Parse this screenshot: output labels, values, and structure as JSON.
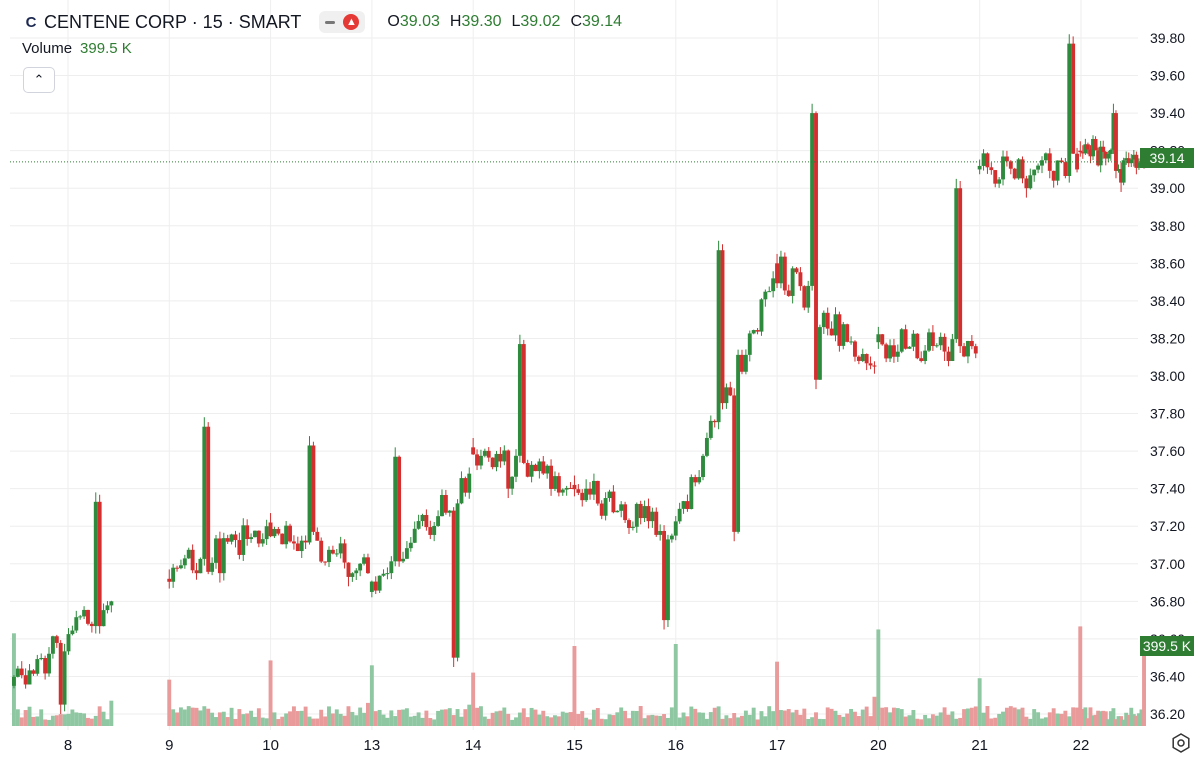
{
  "header": {
    "logo_letter": "C",
    "symbol": "CENTENE CORP · 15 · SMART",
    "ohlc": {
      "o_label": "O",
      "o": "39.03",
      "h_label": "H",
      "h": "39.30",
      "l_label": "L",
      "l": "39.02",
      "c_label": "C",
      "c": "39.14"
    },
    "icons": [
      "minus-icon",
      "flame-icon"
    ]
  },
  "volume_legend": {
    "label": "Volume",
    "value": "399.5 K"
  },
  "collapse_icon": "chevron-up-icon",
  "price_badge": "39.14",
  "volume_badge": "399.5 K",
  "colors": {
    "up": "#26a69a",
    "up_candle": "#2e8b3e",
    "down": "#d32f2f",
    "up_volume": "#8fc7a2",
    "down_volume": "#e99a9a",
    "grid": "#eeeeee"
  },
  "settings_icon": "settings-icon",
  "chart_data": {
    "type": "candlestick",
    "y_ticks": [
      "39.80",
      "39.60",
      "39.40",
      "39.20",
      "39.00",
      "38.80",
      "38.60",
      "38.40",
      "38.20",
      "38.00",
      "37.80",
      "37.60",
      "37.40",
      "37.20",
      "37.00",
      "36.80",
      "36.60",
      "36.40",
      "36.20"
    ],
    "ylim": [
      36.14,
      39.86
    ],
    "x_ticks": [
      "8",
      "9",
      "10",
      "13",
      "14",
      "15",
      "16",
      "17",
      "20",
      "21",
      "22"
    ],
    "last_close": 39.14,
    "days": [
      {
        "day": "8",
        "open": 36.35,
        "close": 36.8,
        "low": 36.2,
        "high": 37.38
      },
      {
        "day": "9",
        "open": 36.92,
        "close": 37.2,
        "low": 36.9,
        "high": 37.78
      },
      {
        "day": "10",
        "open": 37.22,
        "close": 36.95,
        "low": 36.88,
        "high": 37.68
      },
      {
        "day": "13",
        "open": 36.85,
        "close": 37.48,
        "low": 36.45,
        "high": 37.62
      },
      {
        "day": "14",
        "open": 37.62,
        "close": 37.4,
        "low": 37.35,
        "high": 38.22
      },
      {
        "day": "15",
        "open": 37.42,
        "close": 37.15,
        "low": 36.65,
        "high": 37.45
      },
      {
        "day": "16",
        "open": 37.15,
        "close": 38.52,
        "low": 37.12,
        "high": 38.72
      },
      {
        "day": "17",
        "open": 38.6,
        "close": 38.05,
        "low": 37.93,
        "high": 39.45
      },
      {
        "day": "20",
        "open": 38.18,
        "close": 38.12,
        "low": 38.08,
        "high": 39.05
      },
      {
        "day": "21",
        "open": 39.1,
        "close": 39.1,
        "low": 38.95,
        "high": 39.82
      },
      {
        "day": "22",
        "open": 39.2,
        "close": 39.14,
        "low": 38.98,
        "high": 39.45
      }
    ]
  }
}
